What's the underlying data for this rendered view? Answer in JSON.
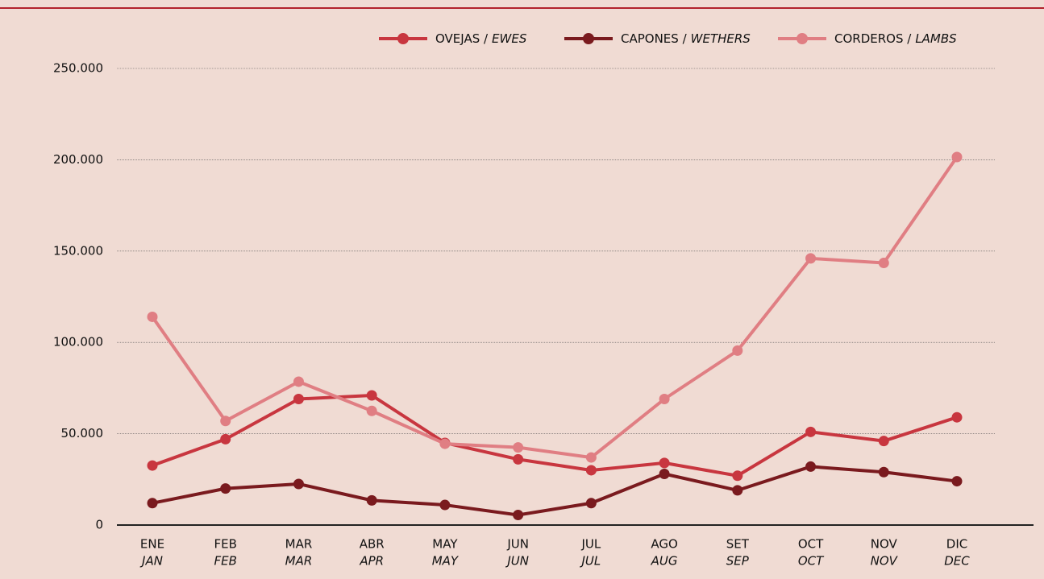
{
  "chart_data": {
    "type": "line",
    "categories": [
      "ENE",
      "FEB",
      "MAR",
      "ABR",
      "MAY",
      "JUN",
      "JUL",
      "AGO",
      "SET",
      "OCT",
      "NOV",
      "DIC"
    ],
    "categories_en": [
      "JAN",
      "FEB",
      "MAR",
      "APR",
      "MAY",
      "JUN",
      "JUL",
      "AUG",
      "SEP",
      "OCT",
      "NOV",
      "DEC"
    ],
    "series": [
      {
        "name": "OVEJAS /",
        "name_en": "EWES",
        "color": "#c8363f",
        "values": [
          32600,
          47000,
          69000,
          71000,
          45000,
          36000,
          30000,
          34000,
          27000,
          51000,
          46000,
          59000
        ]
      },
      {
        "name": "CAPONES /",
        "name_en": "WETHERS",
        "color": "#7a1a1e",
        "values": [
          12000,
          20000,
          22500,
          13500,
          11000,
          5500,
          12000,
          28000,
          19000,
          32000,
          29000,
          24000
        ]
      },
      {
        "name": "CORDEROS /",
        "name_en": "LAMBS",
        "color": "#e07e83",
        "values": [
          114000,
          57000,
          78500,
          62500,
          44500,
          42500,
          37000,
          69000,
          95500,
          146000,
          143500,
          201500
        ]
      }
    ],
    "ylim": [
      0,
      250000
    ],
    "yticks": [
      0,
      {
        "value": 50000,
        "label": "50.000"
      },
      {
        "value": 100000,
        "label": "100.000"
      },
      {
        "value": 150000,
        "label": "150.000"
      },
      {
        "value": 200000,
        "label": "200.000"
      },
      {
        "value": 250000,
        "label": "250.000"
      }
    ],
    "grid": true
  }
}
